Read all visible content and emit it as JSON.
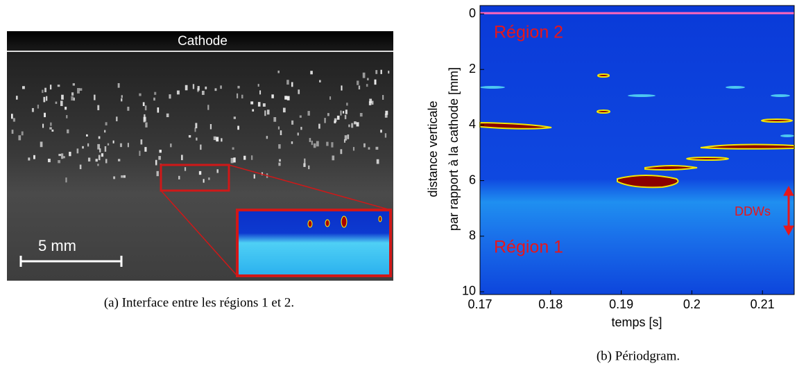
{
  "panel_a": {
    "label_top": "Cathode",
    "scale_bar": "5 mm",
    "caption": "(a) Interface entre les régions 1 et 2."
  },
  "chart_data": {
    "type": "heatmap",
    "xlabel": "temps [s]",
    "ylabel": [
      "distance verticale",
      "par rapport à la cathode [mm]"
    ],
    "xlim": [
      0.17,
      0.2145
    ],
    "xticks": [
      0.17,
      0.18,
      0.19,
      0.2,
      0.21
    ],
    "ylim": [
      10.1,
      -0.3
    ],
    "yticks": [
      0,
      2,
      4,
      6,
      8,
      10
    ],
    "annotations": [
      "Région 2",
      "Région 1",
      "DDWs"
    ],
    "caption": "(b) Périodgram."
  }
}
